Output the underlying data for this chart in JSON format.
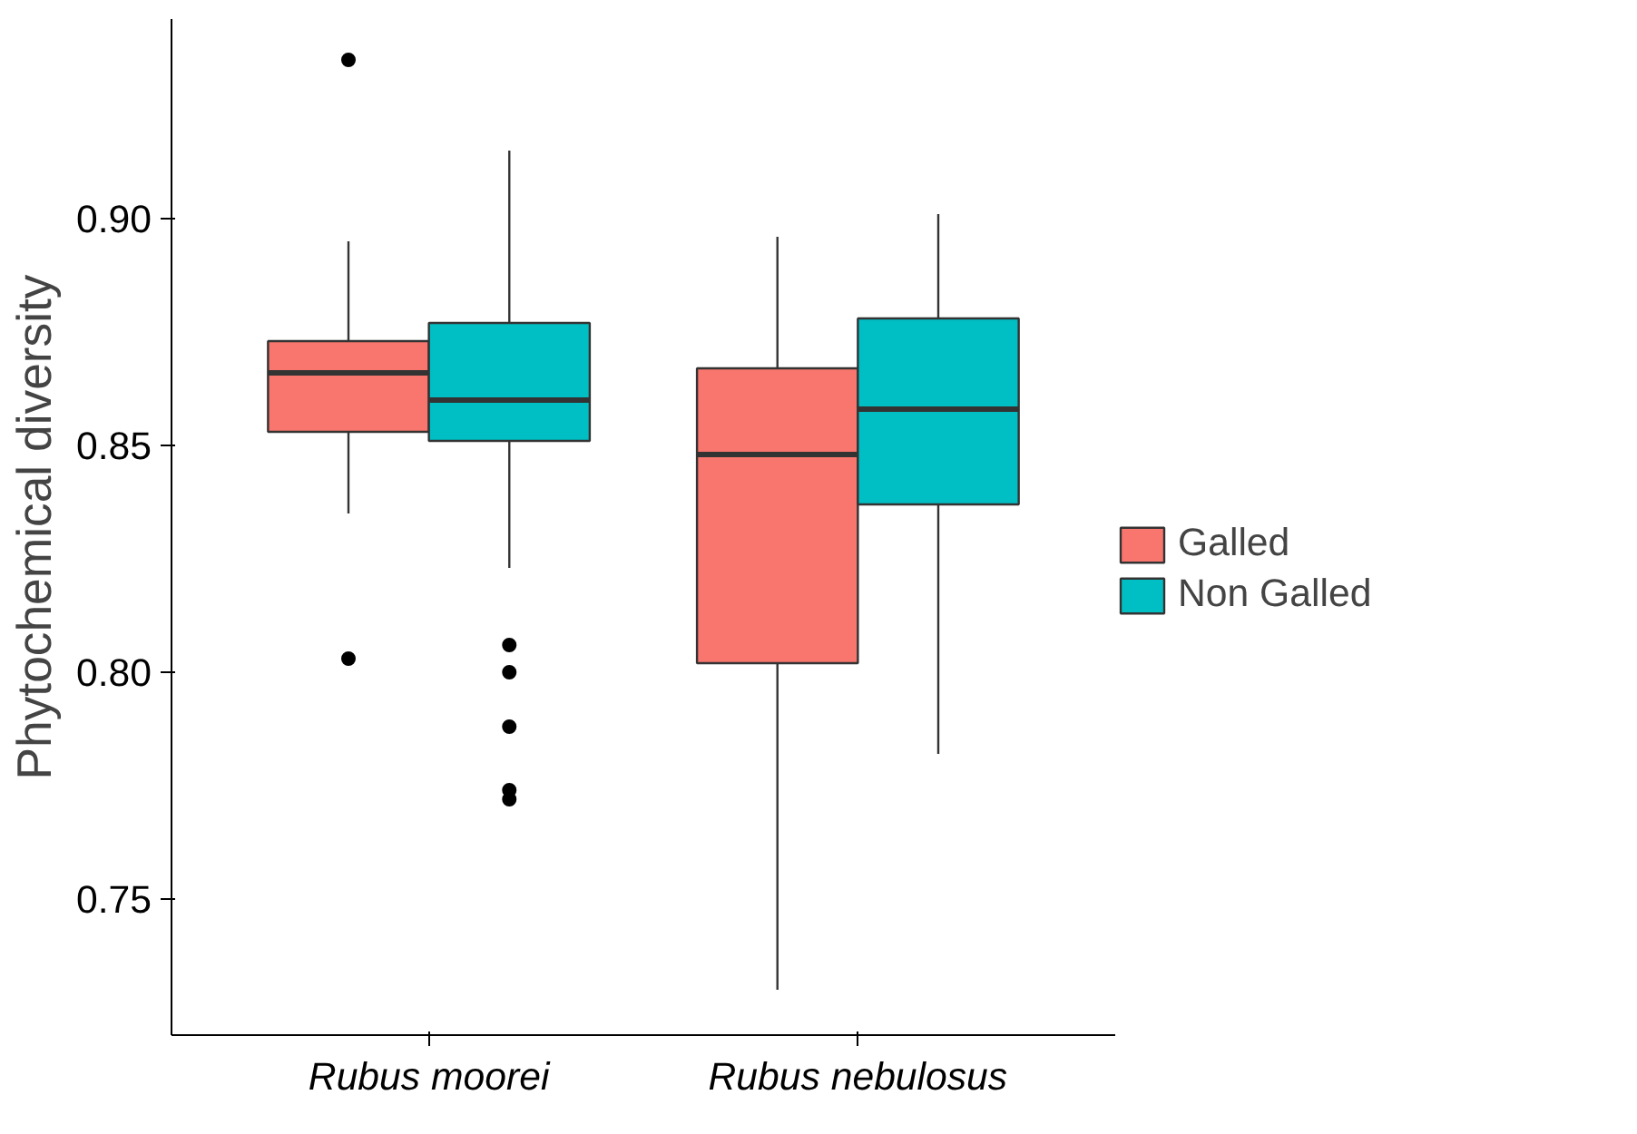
{
  "chart_data": {
    "type": "box",
    "ylabel": "Phytochemical diversity",
    "categories": [
      "Rubus moorei",
      "Rubus nebulosus"
    ],
    "ylim": [
      0.72,
      0.944
    ],
    "yticks": [
      {
        "value": 0.75,
        "label": "0.75"
      },
      {
        "value": 0.8,
        "label": "0.80"
      },
      {
        "value": 0.85,
        "label": "0.85"
      },
      {
        "value": 0.9,
        "label": "0.90"
      }
    ],
    "grid": false,
    "legend": "right",
    "series": [
      {
        "name": "Galled",
        "color": "#f8766d",
        "boxes": [
          {
            "low": 0.835,
            "q1": 0.853,
            "median": 0.866,
            "q3": 0.873,
            "high": 0.895,
            "outliers": [
              0.935,
              0.803
            ]
          },
          {
            "low": 0.73,
            "q1": 0.802,
            "median": 0.848,
            "q3": 0.867,
            "high": 0.896
          }
        ]
      },
      {
        "name": "Non Galled",
        "color": "#00bfc4",
        "boxes": [
          {
            "low": 0.823,
            "q1": 0.851,
            "median": 0.86,
            "q3": 0.877,
            "high": 0.915,
            "outliers": [
              0.806,
              0.8,
              0.788,
              0.774,
              0.772
            ]
          },
          {
            "low": 0.782,
            "q1": 0.837,
            "median": 0.858,
            "q3": 0.878,
            "high": 0.901
          }
        ]
      }
    ]
  }
}
